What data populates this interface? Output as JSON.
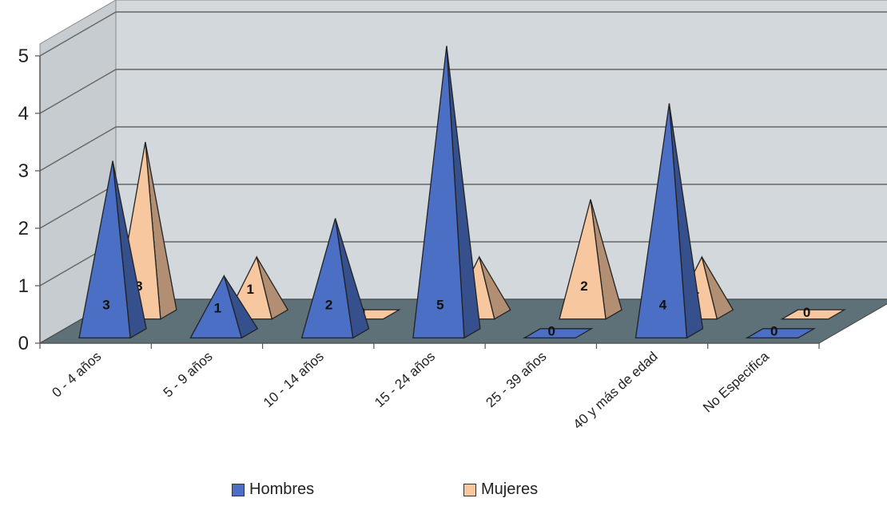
{
  "chart_data": {
    "type": "bar",
    "style": "3d-pyramid",
    "categories": [
      "0 - 4 años",
      "5 - 9 años",
      "10 - 14 años",
      "15 - 24 años",
      "25 - 39 años",
      "40 y más de edad",
      "No Especifica"
    ],
    "series": [
      {
        "name": "Hombres",
        "values": [
          3,
          1,
          2,
          5,
          0,
          4,
          0
        ],
        "color": "#4a6fc4"
      },
      {
        "name": "Mujeres",
        "values": [
          3,
          1,
          0,
          1,
          2,
          1,
          0
        ],
        "color": "#f7c79f"
      }
    ],
    "ylim": [
      0,
      5
    ],
    "yticks": [
      "0",
      "1",
      "2",
      "3",
      "4",
      "5"
    ],
    "grid": true,
    "data_labels": true,
    "legend_position": "bottom",
    "colors": {
      "wall": "#d3d8dc",
      "side_wall": "#c6ccd0",
      "floor": "#5f7178",
      "grid": "#666666"
    }
  },
  "legend": {
    "items": [
      {
        "label": "Hombres",
        "color": "#4a6fc4"
      },
      {
        "label": "Mujeres",
        "color": "#f7c79f"
      }
    ]
  }
}
